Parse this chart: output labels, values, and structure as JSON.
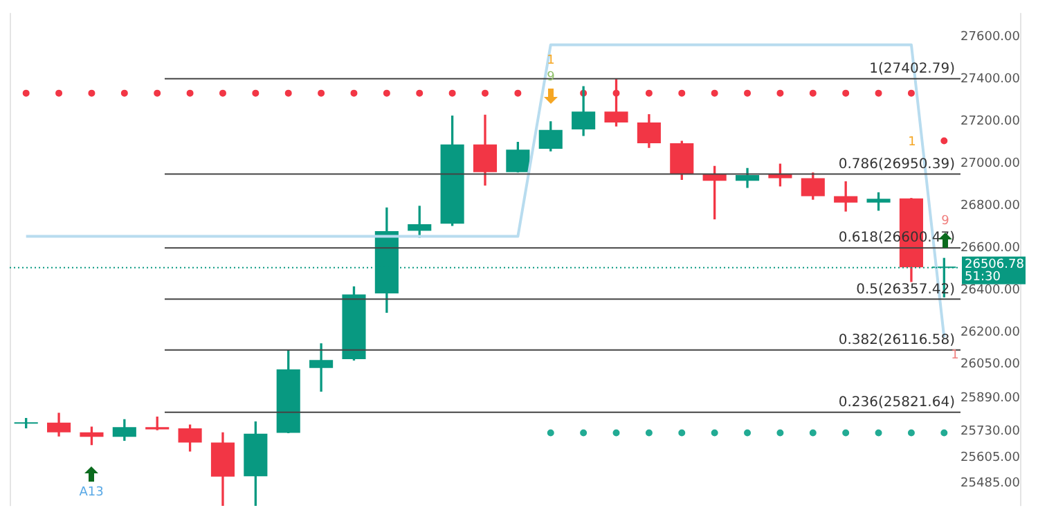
{
  "chart_data": {
    "type": "candlestick",
    "ylim": [
      25377,
      27714
    ],
    "tick_labels": "y",
    "categories": [
      null,
      null,
      null,
      null,
      null,
      null,
      null,
      null,
      null,
      null,
      null,
      null,
      null,
      null,
      null,
      null,
      null,
      null,
      null,
      null,
      null,
      null,
      null,
      null,
      null,
      null,
      null,
      null,
      null
    ],
    "yticks": [
      {
        "value": 27600,
        "label": "27600.00"
      },
      {
        "value": 27400,
        "label": "27400.00"
      },
      {
        "value": 27200,
        "label": "27200.00"
      },
      {
        "value": 27000,
        "label": "27000.00"
      },
      {
        "value": 26800,
        "label": "26800.00"
      },
      {
        "value": 26600,
        "label": "26600.00"
      },
      {
        "value": 26400,
        "label": "26400.00"
      },
      {
        "value": 26200,
        "label": "26200.00"
      },
      {
        "value": 26050,
        "label": "26050.00"
      },
      {
        "value": 25890,
        "label": "25890.00"
      },
      {
        "value": 25730,
        "label": "25730.00"
      },
      {
        "value": 25605,
        "label": "25605.00"
      },
      {
        "value": 25485,
        "label": "25485.00"
      }
    ],
    "series": [
      {
        "type": "line",
        "color": "#b8dcef",
        "values": [
          26655,
          26655,
          26655,
          26655,
          26655,
          26655,
          26655,
          26655,
          26655,
          26655,
          26655,
          26655,
          26655,
          26655,
          26655,
          26655,
          27563,
          27563,
          27563,
          27563,
          27563,
          27563,
          27563,
          27563,
          27563,
          27563,
          27563,
          27563,
          26177
        ]
      },
      {
        "type": "scatter",
        "marker": "circle",
        "color": "#f23645",
        "values": [
          27334,
          27334,
          27334,
          27334,
          27334,
          27334,
          27334,
          27334,
          27334,
          27334,
          27334,
          27334,
          27334,
          27334,
          27334,
          27334,
          null,
          27334,
          27334,
          27334,
          27334,
          27334,
          27334,
          27334,
          27334,
          27334,
          27334,
          27334,
          27108
        ]
      },
      {
        "type": "scatter",
        "marker": "circle",
        "color": "#22ab94",
        "values": [
          null,
          null,
          null,
          null,
          null,
          null,
          null,
          null,
          null,
          null,
          null,
          null,
          null,
          null,
          null,
          null,
          25724,
          25724,
          25724,
          25724,
          25724,
          25724,
          25724,
          25724,
          25724,
          25724,
          25724,
          25724,
          25724
        ]
      },
      {
        "type": "candlestick",
        "colors": [
          "#089981",
          "#f23645",
          "#f23645",
          "#089981",
          "#f23645",
          "#f23645",
          "#f23645",
          "#089981",
          "#089981",
          "#089981",
          "#089981",
          "#089981",
          "#089981",
          "#089981",
          "#f23645",
          "#089981",
          "#089981",
          "#089981",
          "#f23645",
          "#f23645",
          "#f23645",
          "#f23645",
          "#089981",
          "#f23645",
          "#f23645",
          "#f23645",
          "#089981",
          "#f23645",
          "#089981"
        ],
        "ohlc": [
          [
            25767,
            25792,
            25747,
            25769
          ],
          [
            25772,
            25817,
            25709,
            25726
          ],
          [
            25726,
            25751,
            25668,
            25705
          ],
          [
            25705,
            25786,
            25688,
            25751
          ],
          [
            25751,
            25799,
            25738,
            25740
          ],
          [
            25745,
            25761,
            25637,
            25678
          ],
          [
            25678,
            25724,
            25380,
            25516
          ],
          [
            25518,
            25776,
            25380,
            25720
          ],
          [
            25724,
            26114,
            25724,
            26025
          ],
          [
            26031,
            26146,
            25921,
            26069
          ],
          [
            26073,
            26416,
            26069,
            26380
          ],
          [
            26385,
            26790,
            26295,
            26680
          ],
          [
            26682,
            26798,
            26651,
            26713
          ],
          [
            26715,
            27226,
            26707,
            27091
          ],
          [
            27091,
            27230,
            26898,
            26960
          ],
          [
            26960,
            27101,
            26960,
            27066
          ],
          [
            27070,
            27199,
            27060,
            27160
          ],
          [
            27162,
            27365,
            27133,
            27247
          ],
          [
            27247,
            27403,
            27178,
            27195
          ],
          [
            27195,
            27232,
            27077,
            27097
          ],
          [
            27097,
            27106,
            26925,
            26950
          ],
          [
            26950,
            26987,
            26738,
            26919
          ],
          [
            26919,
            26977,
            26887,
            26946
          ],
          [
            26950,
            26998,
            26894,
            26931
          ],
          [
            26931,
            26956,
            26831,
            26846
          ],
          [
            26846,
            26914,
            26775,
            26815
          ],
          [
            26815,
            26862,
            26779,
            26833
          ],
          [
            26835,
            26835,
            26441,
            26509
          ],
          [
            26505,
            26551,
            26368,
            26506.78
          ]
        ]
      }
    ],
    "ref_lines": [
      {
        "axis": "y",
        "value": 27402.79,
        "label": "1(27402.79)",
        "color": "#444444"
      },
      {
        "axis": "y",
        "value": 26950.39,
        "label": "0.786(26950.39)",
        "color": "#444444"
      },
      {
        "axis": "y",
        "value": 26600.47,
        "label": "0.618(26600.47)",
        "color": "#444444"
      },
      {
        "axis": "y",
        "value": 26357.42,
        "label": "0.5(26357.42)",
        "color": "#444444"
      },
      {
        "axis": "y",
        "value": 26116.58,
        "label": "0.382(26116.58)",
        "color": "#444444"
      },
      {
        "axis": "y",
        "value": 25821.64,
        "label": "0.236(25821.64)",
        "color": "#444444"
      },
      {
        "axis": "y",
        "value": 26506.78,
        "label": "26506.78",
        "color": "#089981",
        "line_style": "dotted"
      }
    ],
    "annotations": [
      "51:30",
      "A13",
      "9",
      "1",
      "1",
      "9",
      "1"
    ]
  }
}
